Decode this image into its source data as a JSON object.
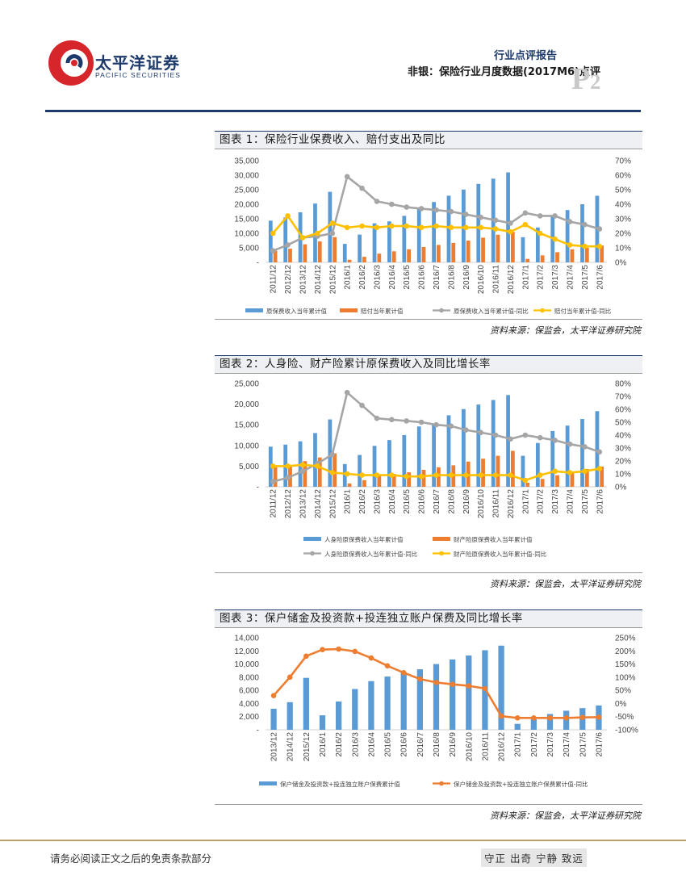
{
  "header": {
    "logo_cn": "太平洋证券",
    "logo_en": "PACIFIC SECURITIES",
    "report_type": "行业点评报告",
    "report_title": "非银：保险行业月度数据(2017M6)点评",
    "page_letter": "P",
    "page_number": "2"
  },
  "footer": {
    "disclaimer": "请务必阅读正文之后的免责条款部分",
    "motto": "守正 出奇 宁静 致远"
  },
  "colors": {
    "blue": "#5b9bd5",
    "orange": "#ed7d31",
    "gray": "#a5a5a5",
    "yellow": "#ffc000",
    "navy": "#1d3a6b"
  },
  "chart_data": [
    {
      "type": "bar",
      "title": "图表 1：保险行业保费收入、赔付支出及同比",
      "source": "资料来源：保监会，太平洋证券研究院",
      "categories": [
        "2011/12",
        "2012/12",
        "2013/12",
        "2014/12",
        "2015/12",
        "2016/1",
        "2016/2",
        "2016/3",
        "2016/4",
        "2016/5",
        "2016/6",
        "2016/7",
        "2016/8",
        "2016/9",
        "2016/10",
        "2016/11",
        "2016/12",
        "2017/1",
        "2017/2",
        "2017/3",
        "2017/4",
        "2017/5",
        "2017/6"
      ],
      "ylim": [
        0,
        35000
      ],
      "y_ticks": [
        "-",
        "5,000",
        "10,000",
        "15,000",
        "20,000",
        "25,000",
        "30,000",
        "35,000"
      ],
      "y2lim": [
        0,
        70
      ],
      "y2_ticks": [
        "0%",
        "10%",
        "20%",
        "30%",
        "40%",
        "50%",
        "60%",
        "70%"
      ],
      "series": [
        {
          "name": "原保费收入当年累计值",
          "kind": "bar",
          "axis": "left",
          "color": "#5b9bd5",
          "values": [
            14339,
            15488,
            17222,
            20235,
            24283,
            6354,
            9553,
            13430,
            14111,
            16000,
            18500,
            20769,
            22935,
            25054,
            27000,
            28810,
            30959,
            8653,
            12000,
            16000,
            18000,
            20000,
            22908
          ]
        },
        {
          "name": "赔付当年累计值",
          "kind": "bar",
          "axis": "left",
          "color": "#ed7d31",
          "values": [
            4000,
            4700,
            6200,
            7200,
            8700,
            900,
            1900,
            3000,
            3800,
            4500,
            5300,
            6000,
            6700,
            7500,
            8500,
            9500,
            10500,
            1200,
            2400,
            3500,
            4500,
            5000,
            5800
          ]
        },
        {
          "name": "原保费收入当年累计值-同比",
          "kind": "line",
          "axis": "right",
          "color": "#a5a5a5",
          "values": [
            8,
            12,
            17,
            18,
            20,
            59,
            51,
            42,
            40,
            38,
            37,
            36,
            35,
            33,
            31,
            29,
            27,
            34,
            32,
            32,
            28,
            26,
            23
          ]
        },
        {
          "name": "赔付当年累计值-同比",
          "kind": "line",
          "axis": "right",
          "color": "#ffc000",
          "values": [
            20,
            32,
            17,
            20,
            27,
            24,
            25,
            24,
            25,
            25,
            24,
            25,
            24,
            24,
            24,
            23,
            21,
            26,
            20,
            16,
            12,
            11,
            11
          ]
        }
      ]
    },
    {
      "type": "bar",
      "title": "图表 2：人身险、财产险累计原保费收入及同比增长率",
      "source": "资料来源：保监会，太平洋证券研究院",
      "categories": [
        "2011/12",
        "2012/12",
        "2013/12",
        "2014/12",
        "2015/12",
        "2016/1",
        "2016/2",
        "2016/3",
        "2016/4",
        "2016/5",
        "2016/6",
        "2016/7",
        "2016/8",
        "2016/9",
        "2016/10",
        "2016/11",
        "2016/12",
        "2017/1",
        "2017/2",
        "2017/3",
        "2017/4",
        "2017/5",
        "2017/6"
      ],
      "ylim": [
        0,
        25000
      ],
      "y_ticks": [
        "-",
        "5,000",
        "10,000",
        "15,000",
        "20,000",
        "25,000"
      ],
      "y2lim": [
        0,
        80
      ],
      "y2_ticks": [
        "0%",
        "10%",
        "20%",
        "30%",
        "40%",
        "50%",
        "60%",
        "70%",
        "80%"
      ],
      "series": [
        {
          "name": "人身险原保费收入当年累计值",
          "kind": "bar",
          "axis": "left",
          "color": "#5b9bd5",
          "values": [
            9700,
            10200,
            11000,
            13000,
            16300,
            5500,
            7700,
            9900,
            11300,
            12500,
            14600,
            15300,
            17300,
            18800,
            19900,
            21000,
            22200,
            7500,
            10600,
            13500,
            14800,
            16400,
            18300
          ]
        },
        {
          "name": "财产险原保费收入当年累计值",
          "kind": "bar",
          "axis": "left",
          "color": "#ed7d31",
          "values": [
            4700,
            5300,
            6200,
            7100,
            8100,
            800,
            1600,
            2700,
            3100,
            3500,
            4100,
            4700,
            5200,
            6100,
            6800,
            7500,
            8700,
            1000,
            1900,
            2800,
            3600,
            4300,
            4900
          ]
        },
        {
          "name": "人身险原保费收入当年累计值-同比",
          "kind": "line",
          "axis": "right",
          "color": "#a5a5a5",
          "values": [
            4,
            7,
            12,
            18,
            25,
            73,
            63,
            53,
            52,
            51,
            50,
            48,
            47,
            44,
            42,
            40,
            37,
            40,
            38,
            36,
            33,
            31,
            27
          ]
        },
        {
          "name": "财产险原保费收入当年累计值-同比",
          "kind": "line",
          "axis": "right",
          "color": "#ffc000",
          "values": [
            16,
            16,
            17,
            16,
            11,
            10,
            9,
            9,
            9,
            8,
            8,
            9,
            9,
            9,
            9,
            9,
            9,
            5,
            9,
            12,
            11,
            12,
            14
          ]
        }
      ]
    },
    {
      "type": "bar",
      "title": "图表 3：保户储金及投资款+投连独立账户保费及同比增长率",
      "source": "资料来源：保监会，太平洋证券研究院",
      "categories": [
        "2013/12",
        "2014/12",
        "2015/12",
        "2016/1",
        "2016/2",
        "2016/3",
        "2016/4",
        "2016/5",
        "2016/6",
        "2016/7",
        "2016/8",
        "2016/9",
        "2016/10",
        "2016/11",
        "2016/12",
        "2017/1",
        "2017/2",
        "2017/3",
        "2017/4",
        "2017/5",
        "2017/6"
      ],
      "ylim": [
        0,
        14000
      ],
      "y_ticks": [
        "-",
        "2,000",
        "4,000",
        "6,000",
        "8,000",
        "10,000",
        "12,000",
        "14,000"
      ],
      "y2lim": [
        -100,
        250
      ],
      "y2_ticks": [
        "-100%",
        "-50%",
        "0%",
        "50%",
        "100%",
        "150%",
        "200%",
        "250%"
      ],
      "series": [
        {
          "name": "保户储金及投资款+投连独立账户保费累计值",
          "kind": "bar",
          "axis": "left",
          "color": "#5b9bd5",
          "values": [
            3200,
            4200,
            7900,
            2200,
            4300,
            6200,
            7400,
            8100,
            8700,
            9200,
            10000,
            10700,
            11300,
            12100,
            12800,
            900,
            1600,
            2400,
            2900,
            3300,
            3700
          ]
        },
        {
          "name": "保户储金及投资款+投连独立账户保费累计值-同比",
          "kind": "line",
          "axis": "right",
          "color": "#ed7d31",
          "values": [
            30,
            100,
            180,
            205,
            207,
            198,
            173,
            143,
            117,
            93,
            80,
            73,
            67,
            57,
            -48,
            -55,
            -55,
            -55,
            -55,
            -53,
            -52
          ]
        }
      ]
    }
  ]
}
